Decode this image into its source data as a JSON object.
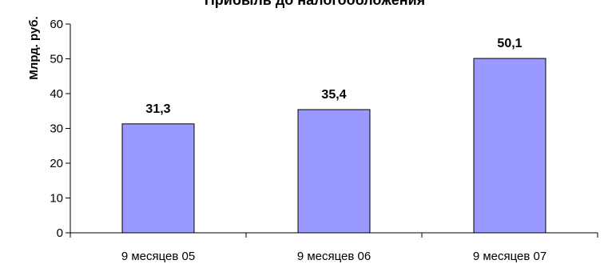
{
  "chart_data": {
    "type": "bar",
    "title": "Прибыль до налогообложения",
    "xlabel": "",
    "ylabel": "Млрд. руб.",
    "categories": [
      "9 месяцев 05",
      "9 месяцев 06",
      "9 месяцев 07"
    ],
    "values": [
      31.3,
      35.4,
      50.1
    ],
    "data_labels": [
      "31,3",
      "35,4",
      "50,1"
    ],
    "yticks": [
      0,
      10,
      20,
      30,
      40,
      50,
      60
    ],
    "ylim": [
      0,
      60
    ],
    "grid": false,
    "legend": "none",
    "bar_color": "#9999ff",
    "bar_edge_color": "#000000"
  }
}
